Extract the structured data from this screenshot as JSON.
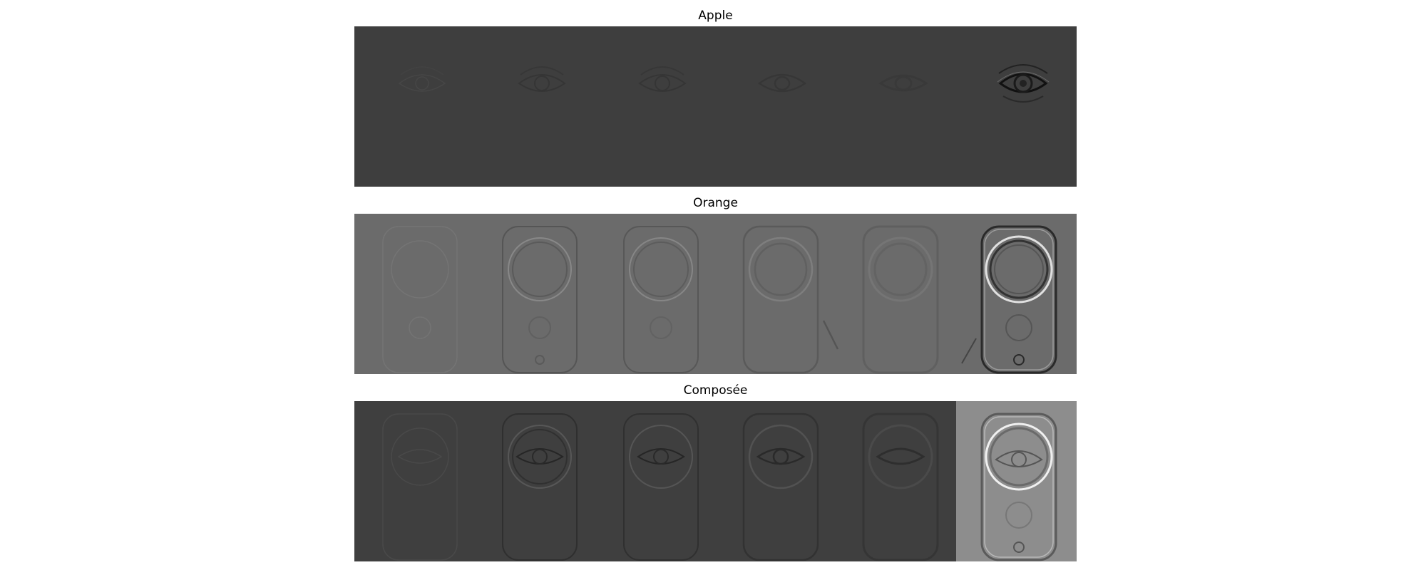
{
  "figure": {
    "panels": [
      {
        "id": "apple",
        "title": "Apple"
      },
      {
        "id": "orange",
        "title": "Orange"
      },
      {
        "id": "composed",
        "title": "Composée"
      }
    ],
    "images": {
      "apple_subject": "eye",
      "orange_subject": "logitech-speaker",
      "composed_subject": "eye-blended-with-speaker"
    },
    "tiles_per_row": 6,
    "colors": {
      "apple_bg": "#3e3e3e",
      "orange_bg": "#6b6b6b",
      "composed_bg": "#3f3f3f",
      "composed_last_tile_bg": "#8d8d8d"
    }
  }
}
